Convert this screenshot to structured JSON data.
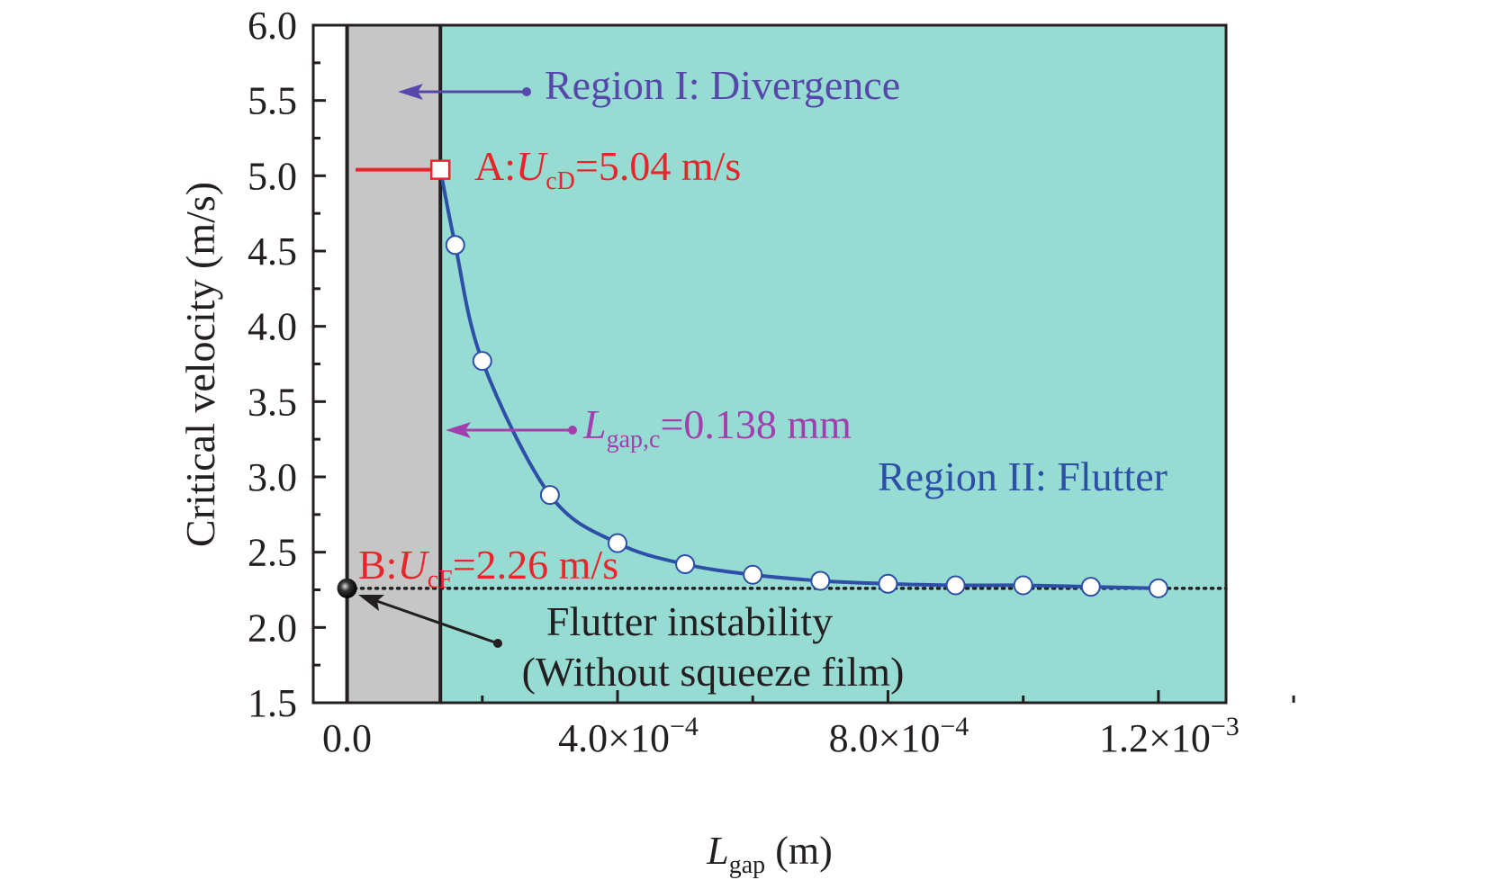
{
  "chart_data": {
    "type": "line",
    "xlabel": {
      "main": "L",
      "sub": "gap",
      "unit": " (m)"
    },
    "ylabel": "Critical velocity (m/s)",
    "xlim": [
      -5e-05,
      0.0013
    ],
    "ylim": [
      1.5,
      6.0
    ],
    "x_ticks": [
      {
        "value": 0,
        "label": "0.0"
      },
      {
        "value": 0.0004,
        "mant": "4.0",
        "exp": "−4"
      },
      {
        "value": 0.0008,
        "mant": "8.0",
        "exp": "−4"
      },
      {
        "value": 0.0012,
        "mant": "1.2",
        "exp": "−3"
      }
    ],
    "y_ticks": [
      "1.5",
      "2.0",
      "2.5",
      "3.0",
      "3.5",
      "4.0",
      "4.5",
      "5.0",
      "5.5",
      "6.0"
    ],
    "grid": false,
    "regions": [
      {
        "from": 0,
        "to": 0.000138,
        "color": "#C6C6C6"
      },
      {
        "from": 0.000138,
        "to": 0.0013,
        "color": "#96DCD3"
      }
    ],
    "series": [
      {
        "x": [
          0.000138,
          0.00016,
          0.0002,
          0.0003,
          0.0004,
          0.0005,
          0.0006,
          0.0007,
          0.0008,
          0.0009,
          0.001,
          0.0011,
          0.0012
        ],
        "y": [
          5.04,
          4.54,
          3.77,
          2.88,
          2.56,
          2.42,
          2.35,
          2.31,
          2.29,
          2.28,
          2.28,
          2.27,
          2.26
        ],
        "color": "#2E4FA8",
        "marker": "open-circle"
      }
    ],
    "reference_line": {
      "y": 2.26,
      "style": "dotted"
    },
    "annotations": {
      "region1": "Region I: Divergence",
      "region2": "Region II: Flutter",
      "pointA": {
        "prefix": "A:",
        "var": "U",
        "sub": "cD",
        "rest": "=5.04 m/s",
        "x": 0.000138,
        "y": 5.04
      },
      "pointB": {
        "prefix": "B:",
        "var": "U",
        "sub": "cF",
        "rest": "=2.26 m/s",
        "x": 0,
        "y": 2.26
      },
      "lgap": {
        "var": "L",
        "sub": "gap,c",
        "rest": "=0.138 mm"
      },
      "flutter1": "Flutter instability",
      "flutter2": "(Without squeeze film)"
    },
    "colors": {
      "red": "#E8262A",
      "blue": "#2E4FA8",
      "purple": "#A23FAE",
      "indigo": "#5747AA",
      "teal": "#96DCD3",
      "gray": "#C6C6C6"
    }
  }
}
